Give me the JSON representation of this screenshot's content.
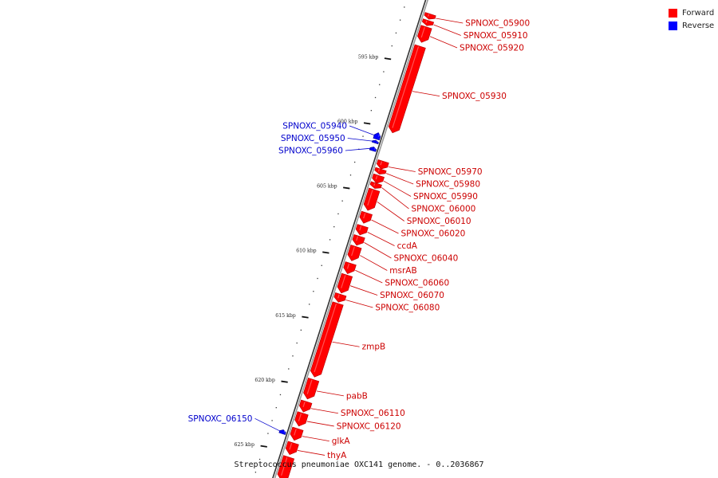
{
  "caption": "Streptococcus pneumoniae OXC141 genome. - 0..2036867",
  "legend": {
    "forward_label": "Forward",
    "reverse_label": "Reverse",
    "forward_color": "#ff0000",
    "reverse_color": "#0000ff"
  },
  "ticks": [
    {
      "label": "595 kbp",
      "kbp": 595
    },
    {
      "label": "600 kbp",
      "kbp": 600
    },
    {
      "label": "605 kbp",
      "kbp": 605
    },
    {
      "label": "610 kbp",
      "kbp": 610
    },
    {
      "label": "615 kbp",
      "kbp": 615
    },
    {
      "label": "620 kbp",
      "kbp": 620
    },
    {
      "label": "625 kbp",
      "kbp": 625
    }
  ],
  "genes": [
    {
      "name": "SPNOXC_05900",
      "strand": "forward",
      "start_kbp": 590.9,
      "end_kbp": 591.3
    },
    {
      "name": "SPNOXC_05910",
      "strand": "forward",
      "start_kbp": 591.4,
      "end_kbp": 591.8
    },
    {
      "name": "SPNOXC_05920",
      "strand": "forward",
      "start_kbp": 591.9,
      "end_kbp": 593.1
    },
    {
      "name": "SPNOXC_05930",
      "strand": "forward",
      "start_kbp": 593.4,
      "end_kbp": 600.1
    },
    {
      "name": "SPNOXC_05940",
      "strand": "reverse",
      "start_kbp": 600.4,
      "end_kbp": 600.9
    },
    {
      "name": "SPNOXC_05950",
      "strand": "reverse",
      "start_kbp": 601.0,
      "end_kbp": 601.2
    },
    {
      "name": "SPNOXC_05960",
      "strand": "reverse",
      "start_kbp": 601.5,
      "end_kbp": 601.8
    },
    {
      "name": "SPNOXC_05970",
      "strand": "forward",
      "start_kbp": 602.3,
      "end_kbp": 602.9
    },
    {
      "name": "SPNOXC_05980",
      "strand": "forward",
      "start_kbp": 602.9,
      "end_kbp": 603.3
    },
    {
      "name": "SPNOXC_05990",
      "strand": "forward",
      "start_kbp": 603.4,
      "end_kbp": 604.0
    },
    {
      "name": "SPNOXC_06000",
      "strand": "forward",
      "start_kbp": 604.0,
      "end_kbp": 604.4
    },
    {
      "name": "SPNOXC_06010",
      "strand": "forward",
      "start_kbp": 604.5,
      "end_kbp": 606.1
    },
    {
      "name": "SPNOXC_06020",
      "strand": "forward",
      "start_kbp": 606.3,
      "end_kbp": 607.1
    },
    {
      "name": "ccdA",
      "strand": "forward",
      "start_kbp": 607.3,
      "end_kbp": 608.0
    },
    {
      "name": "SPNOXC_06040",
      "strand": "forward",
      "start_kbp": 608.1,
      "end_kbp": 608.8
    },
    {
      "name": "msrAB",
      "strand": "forward",
      "start_kbp": 608.9,
      "end_kbp": 610.0
    },
    {
      "name": "SPNOXC_06060",
      "strand": "forward",
      "start_kbp": 610.2,
      "end_kbp": 611.0
    },
    {
      "name": "SPNOXC_06070",
      "strand": "forward",
      "start_kbp": 611.1,
      "end_kbp": 612.5
    },
    {
      "name": "SPNOXC_06080",
      "strand": "forward",
      "start_kbp": 612.6,
      "end_kbp": 613.2
    },
    {
      "name": "zmpB",
      "strand": "forward",
      "start_kbp": 613.3,
      "end_kbp": 619.0
    },
    {
      "name": "pabB",
      "strand": "forward",
      "start_kbp": 619.2,
      "end_kbp": 620.7
    },
    {
      "name": "SPNOXC_06110",
      "strand": "forward",
      "start_kbp": 620.9,
      "end_kbp": 621.7
    },
    {
      "name": "SPNOXC_06120",
      "strand": "forward",
      "start_kbp": 621.8,
      "end_kbp": 622.8
    },
    {
      "name": "SPNOXC_06150",
      "strand": "reverse",
      "start_kbp": 623.4,
      "end_kbp": 623.7
    },
    {
      "name": "glkA",
      "strand": "forward",
      "start_kbp": 623.0,
      "end_kbp": 623.9
    },
    {
      "name": "thyA",
      "strand": "forward",
      "start_kbp": 624.1,
      "end_kbp": 625.0
    },
    {
      "name": "",
      "strand": "forward",
      "start_kbp": 625.2,
      "end_kbp": 627.0
    }
  ]
}
